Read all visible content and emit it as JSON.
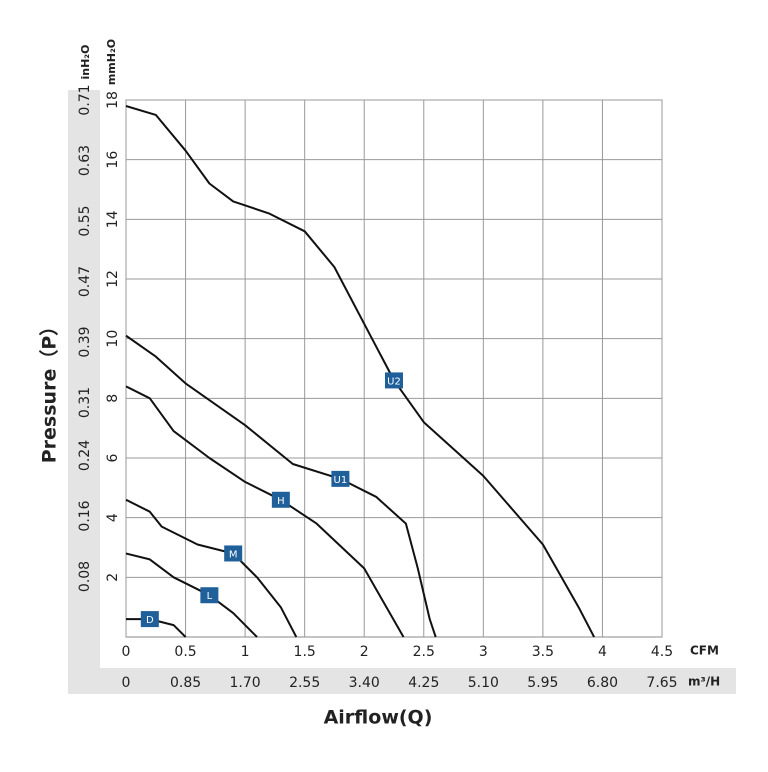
{
  "chart_data": {
    "type": "line",
    "xlabel": "Airflow(Q)",
    "ylabel": "Pressure（P）",
    "x_unit": "CFM",
    "x2_unit": "m³/H",
    "y_unit": "mmH₂O",
    "y2_unit": "inH₂O",
    "xlim": [
      0,
      4.5
    ],
    "xticks": [
      0,
      0.5,
      1,
      1.5,
      2,
      2.5,
      3,
      3.5,
      4,
      4.5
    ],
    "x2lim": [
      0,
      7.65
    ],
    "x2ticks": [
      0,
      0.85,
      {
        "value": 1.7,
        "label": "1.70"
      },
      2.55,
      {
        "value": 3.4,
        "label": "3.40"
      },
      4.25,
      {
        "value": 5.1,
        "label": "5.10"
      },
      5.95,
      {
        "value": 6.8,
        "label": "6.80"
      },
      7.65
    ],
    "ylim": [
      0,
      18
    ],
    "yticks": [
      2,
      4,
      6,
      8,
      10,
      12,
      14,
      16,
      18
    ],
    "y2lim": [
      0,
      0.71
    ],
    "y2ticks": [
      0.08,
      0.16,
      0.24,
      0.31,
      0.39,
      0.47,
      0.55,
      0.63,
      0.71
    ],
    "grid": true,
    "series": [
      {
        "name": "U2",
        "color": "#111111",
        "x": [
          0,
          0.25,
          0.5,
          0.7,
          0.9,
          1.2,
          1.5,
          1.75,
          2.0,
          2.25,
          2.5,
          3.0,
          3.5,
          3.8,
          3.93
        ],
        "values": [
          17.8,
          17.5,
          16.3,
          15.2,
          14.6,
          14.2,
          13.6,
          12.4,
          10.5,
          8.6,
          7.2,
          5.4,
          3.1,
          1.0,
          0
        ]
      },
      {
        "name": "U1",
        "color": "#111111",
        "x": [
          0,
          0.25,
          0.5,
          1.0,
          1.4,
          1.8,
          2.1,
          2.35,
          2.45,
          2.55,
          2.6
        ],
        "values": [
          10.1,
          9.4,
          8.5,
          7.1,
          5.8,
          5.3,
          4.7,
          3.8,
          2.3,
          0.6,
          0
        ]
      },
      {
        "name": "H",
        "color": "#111111",
        "x": [
          0,
          0.2,
          0.4,
          0.7,
          1.0,
          1.3,
          1.6,
          2.0,
          2.33
        ],
        "values": [
          8.4,
          8.0,
          6.9,
          6.0,
          5.2,
          4.6,
          3.8,
          2.3,
          0
        ]
      },
      {
        "name": "M",
        "color": "#111111",
        "x": [
          0,
          0.2,
          0.3,
          0.6,
          0.9,
          1.1,
          1.3,
          1.43
        ],
        "values": [
          4.6,
          4.2,
          3.7,
          3.1,
          2.8,
          2.0,
          1.0,
          0
        ]
      },
      {
        "name": "L",
        "color": "#111111",
        "x": [
          0,
          0.2,
          0.4,
          0.7,
          0.9,
          1.1
        ],
        "values": [
          2.8,
          2.6,
          2.0,
          1.4,
          0.8,
          0
        ]
      },
      {
        "name": "D",
        "color": "#111111",
        "x": [
          0,
          0.2,
          0.4,
          0.5
        ],
        "values": [
          0.6,
          0.6,
          0.4,
          0
        ]
      }
    ]
  }
}
